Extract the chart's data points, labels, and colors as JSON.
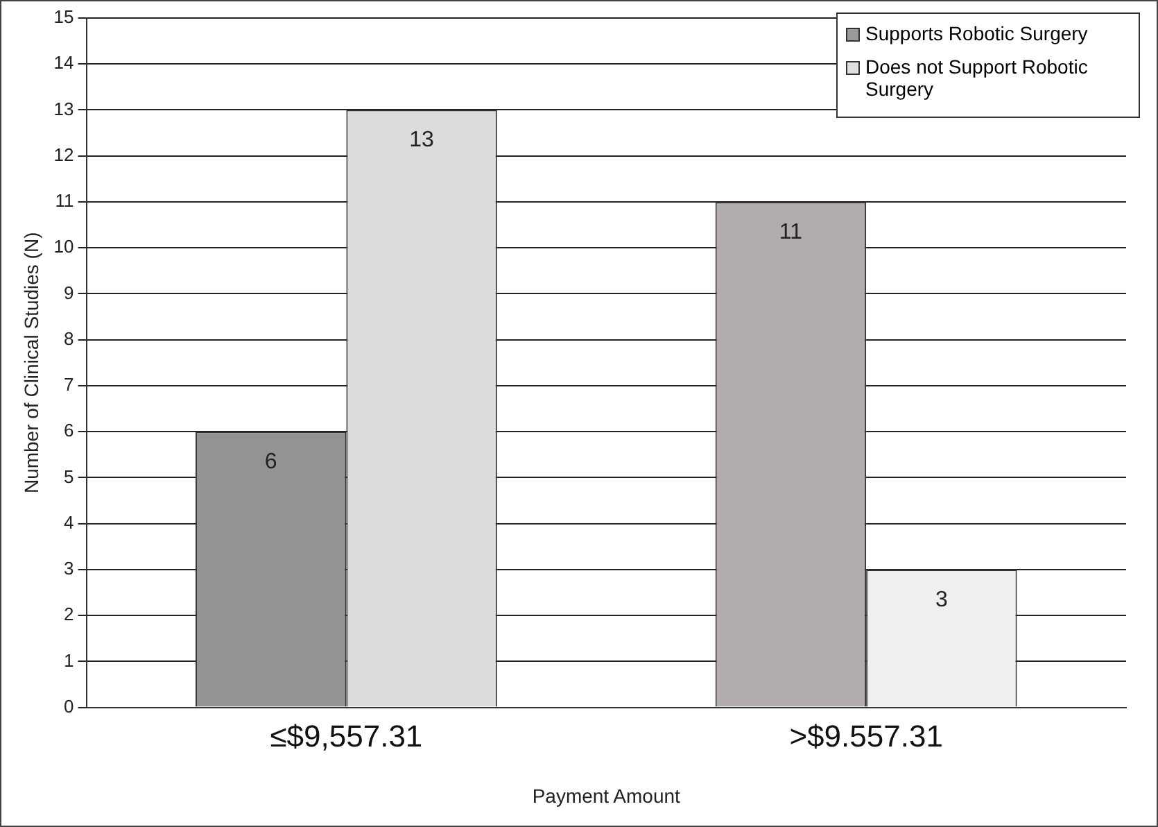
{
  "chart_data": {
    "type": "bar",
    "ylabel": "Number of Clinical Studies (N)",
    "xlabel": "Payment Amount",
    "categories": [
      "≤$9,557.31",
      ">$9.557.31"
    ],
    "series": [
      {
        "name": "Supports Robotic Surgery",
        "color": "#9a9a9a",
        "colors": [
          "#939393",
          "#b3acac"
        ],
        "values": [
          6,
          11
        ]
      },
      {
        "name": "Does not Support Robotic Surgery",
        "color": "#e0e0e0",
        "colors": [
          "#dcdcdc",
          "#efefef"
        ],
        "values": [
          13,
          3
        ]
      }
    ],
    "ylim": [
      0,
      15
    ],
    "yticks": [
      0,
      1,
      2,
      3,
      4,
      5,
      6,
      7,
      8,
      9,
      10,
      11,
      12,
      13,
      14,
      15
    ],
    "grid": "y",
    "legend": "top right",
    "data_labels": true
  }
}
